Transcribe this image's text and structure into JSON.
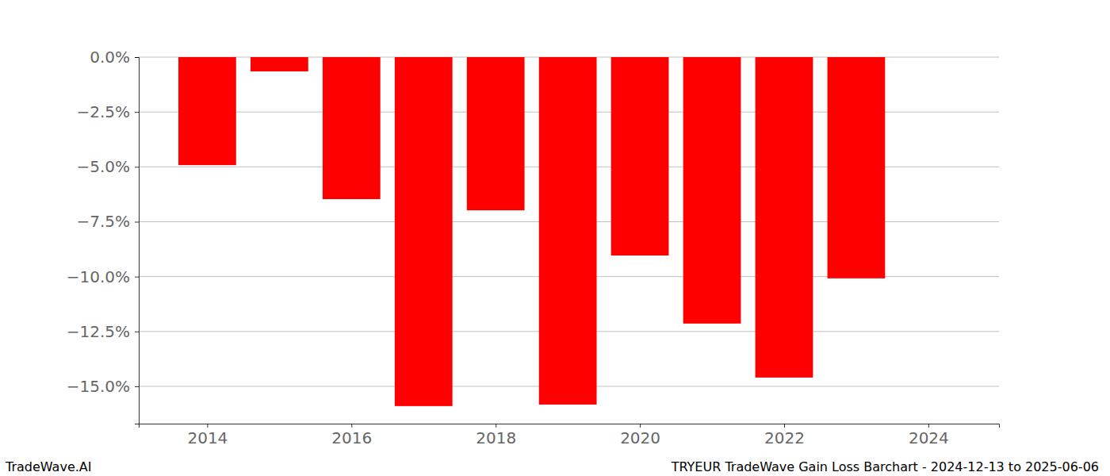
{
  "chart_data": {
    "type": "bar",
    "title": "TRYEUR TradeWave Gain Loss Barchart - 2024-12-13 to 2025-06-06",
    "annotations": [
      "TradeWave.AI"
    ],
    "x": [
      2014,
      2015,
      2016,
      2017,
      2018,
      2019,
      2020,
      2021,
      2022,
      2023
    ],
    "values": [
      -4.92,
      -0.65,
      -6.47,
      -15.9,
      -6.98,
      -15.83,
      -9.04,
      -12.14,
      -14.6,
      -10.08
    ],
    "color": "#ff0000",
    "xlim": [
      2013.05,
      2024.98
    ],
    "xticks": [
      2014,
      2016,
      2018,
      2020,
      2022,
      2024
    ],
    "ylim": [
      -16.7,
      0
    ],
    "yticks": [
      {
        "value": 0,
        "label": "0.0%"
      },
      {
        "value": -2.5,
        "label": "−2.5%"
      },
      {
        "value": -5,
        "label": "−5.0%"
      },
      {
        "value": -7.5,
        "label": "−7.5%"
      },
      {
        "value": -10,
        "label": "−10.0%"
      },
      {
        "value": -12.5,
        "label": "−12.5%"
      },
      {
        "value": -15,
        "label": "−15.0%"
      }
    ],
    "grid": true
  }
}
